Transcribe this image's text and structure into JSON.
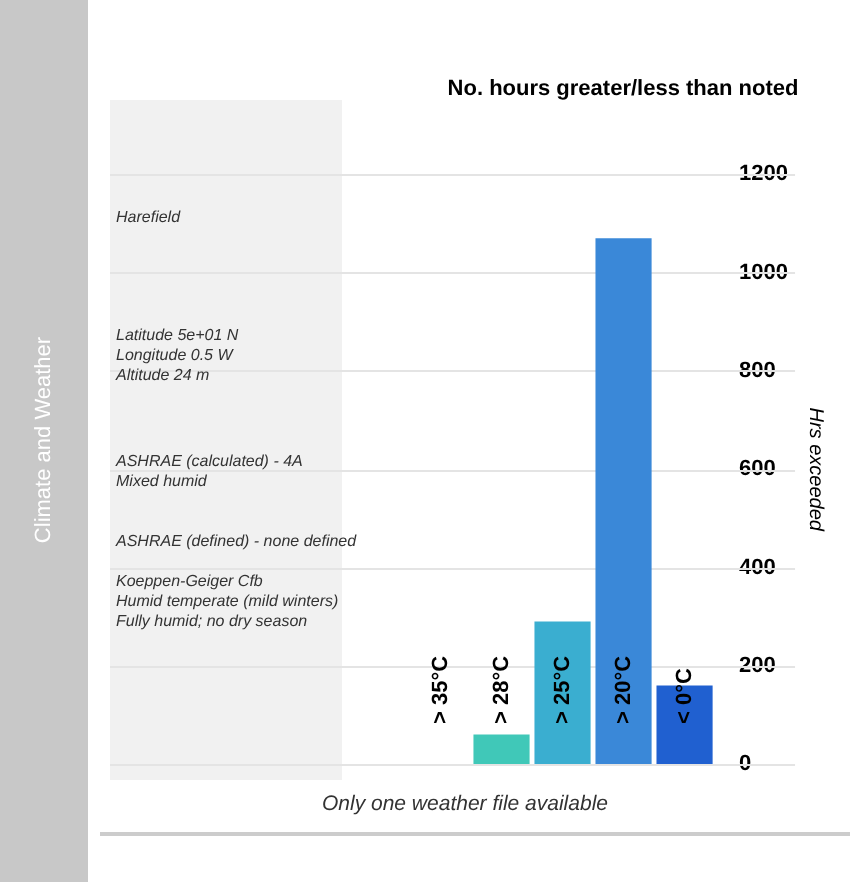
{
  "chart_data": {
    "type": "bar",
    "title": "No. hours greater/less than noted",
    "ylabel": "Hrs exceeded",
    "categories": [
      "> 35°C",
      "> 28°C",
      "> 25°C",
      "> 20°C",
      "< 0°C"
    ],
    "values": [
      0,
      60,
      290,
      1070,
      160
    ],
    "colors": [
      "#40c8b8",
      "#40c8b8",
      "#3aaed0",
      "#3a88d8",
      "#2060d0"
    ],
    "ylim": [
      0,
      1200
    ],
    "yticks": [
      0,
      200,
      400,
      600,
      800,
      1000,
      1200
    ],
    "grid": "y",
    "legend": false,
    "annotations": [
      "Climate and Weather",
      "Harefield",
      "Latitude 5e+01 N\nLongitude 0.5 W\nAltitude 24 m",
      "ASHRAE (calculated) - 4A\nMixed humid",
      "ASHRAE (defined) - none defined",
      "Koeppen-Geiger Cfb\nHumid temperate (mild winters)\nFully humid; no dry season",
      "Only one weather file available"
    ]
  }
}
